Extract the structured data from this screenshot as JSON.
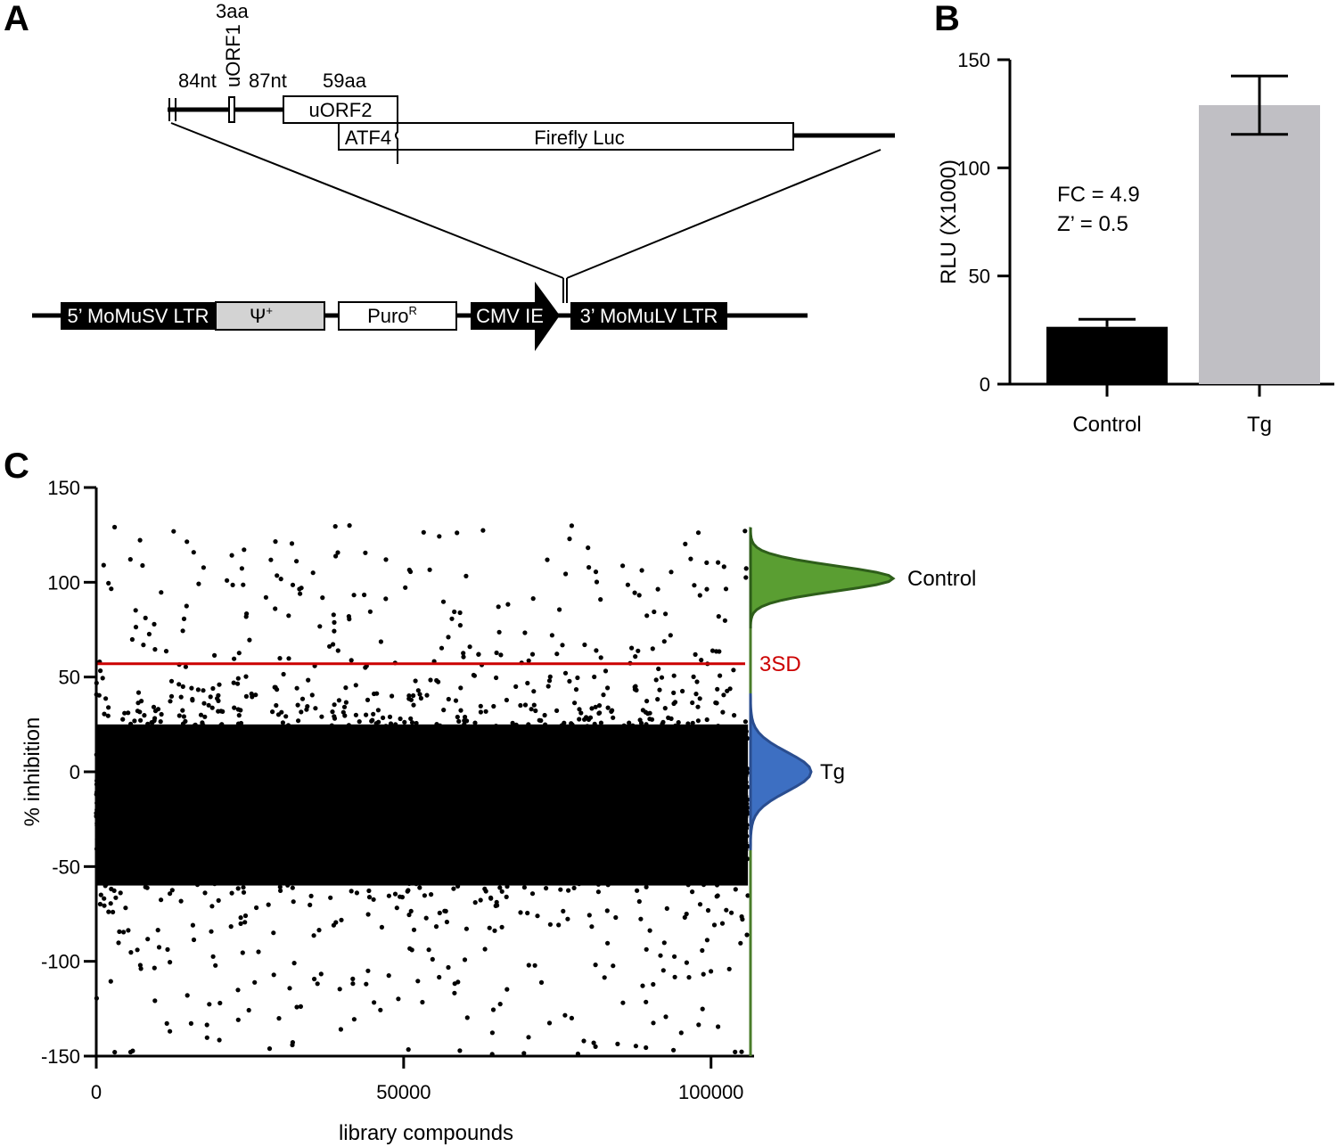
{
  "panels": {
    "a": {
      "letter": "A"
    },
    "b": {
      "letter": "B"
    },
    "c": {
      "letter": "C"
    }
  },
  "construct": {
    "labels": {
      "nt84": "84nt",
      "aa3": "3aa",
      "uorf1": "uORF1",
      "nt87": "87nt",
      "aa59": "59aa",
      "uorf2": "uORF2",
      "atf4": "ATF4",
      "firefly": "Firefly Luc"
    },
    "vector": {
      "ltr5": "5’ MoMuSV LTR",
      "psi": "Ψ",
      "psi_sup": "+",
      "puro": "Puro",
      "puro_sup": "R",
      "cmv": "CMV IE",
      "ltr3": "3’ MoMuLV LTR"
    },
    "colors": {
      "black_box": "#000000",
      "psi_box": "#d3d3d3"
    }
  },
  "chart_data": [
    {
      "id": "B",
      "type": "bar",
      "categories": [
        "Control",
        "Tg"
      ],
      "values": [
        26.5,
        129
      ],
      "errors": [
        3.5,
        13.5
      ],
      "colors": [
        "#000000",
        "#c0bfc4"
      ],
      "ylabel": "RLU (X1000)",
      "ylim": [
        0,
        150
      ],
      "yticks": [
        0,
        50,
        100,
        150
      ],
      "annotations": [
        "FC = 4.9",
        "Z’ = 0.5"
      ],
      "grid": false
    },
    {
      "id": "C",
      "type": "scatter",
      "xlabel": "library compounds",
      "ylabel": "% inhibition",
      "xlim": [
        0,
        107000
      ],
      "ylim": [
        -150,
        150
      ],
      "xticks": [
        0,
        50000,
        100000
      ],
      "yticks": [
        -150,
        -100,
        -50,
        0,
        50,
        100,
        150
      ],
      "n_points_approx": 107000,
      "bulk_distribution": {
        "center": -15,
        "typical_low": -60,
        "typical_high": 25
      },
      "threshold": {
        "label": "3SD",
        "value": 57,
        "color": "#cc0000"
      },
      "distributions": [
        {
          "name": "Control",
          "center": 102,
          "color": "#5a9e32"
        },
        {
          "name": "Tg",
          "center": 0,
          "color": "#3d6fc2"
        }
      ],
      "grid": false
    }
  ]
}
